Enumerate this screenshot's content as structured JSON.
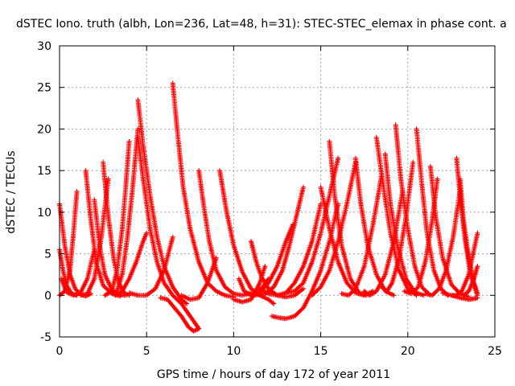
{
  "chart_data": {
    "type": "scatter",
    "title": "dSTEC Iono. truth (albh, Lon=236, Lat=48, h=31): STEC-STEC_elemax in phase cont. a",
    "xlabel": "GPS time / hours of day 172 of year 2011",
    "ylabel": "dSTEC  / TECUs",
    "xlim": [
      0,
      25
    ],
    "ylim": [
      -5,
      30
    ],
    "xticks": [
      0,
      5,
      10,
      15,
      20,
      25
    ],
    "yticks": [
      -5,
      0,
      5,
      10,
      15,
      20,
      25,
      30
    ],
    "grid": true,
    "marker": "+",
    "color": "#ff0000",
    "series": [
      {
        "x": [
          0.0,
          0.3,
          0.6,
          0.9,
          1.2,
          1.5,
          1.8
        ],
        "y": [
          11.0,
          6.0,
          2.5,
          0.8,
          0.1,
          -0.1,
          0.2
        ]
      },
      {
        "x": [
          0.0,
          0.2,
          0.4,
          0.7,
          1.0
        ],
        "y": [
          5.5,
          3.0,
          1.2,
          0.2,
          0.0
        ]
      },
      {
        "x": [
          0.0,
          0.3,
          0.6,
          0.8,
          1.0
        ],
        "y": [
          0.0,
          0.5,
          3.0,
          7.5,
          12.5
        ]
      },
      {
        "x": [
          0.1,
          0.4,
          0.8,
          1.2,
          1.6,
          2.0
        ],
        "y": [
          2.0,
          0.4,
          0.0,
          0.3,
          2.0,
          5.5
        ]
      },
      {
        "x": [
          1.5,
          1.8,
          2.1,
          2.5,
          3.0,
          3.5
        ],
        "y": [
          15.0,
          9.0,
          4.0,
          1.2,
          0.2,
          -0.1
        ]
      },
      {
        "x": [
          1.2,
          1.6,
          2.0,
          2.4,
          2.8
        ],
        "y": [
          0.0,
          0.2,
          2.0,
          7.0,
          14.0
        ]
      },
      {
        "x": [
          2.0,
          2.3,
          2.6,
          3.0,
          3.4,
          3.8
        ],
        "y": [
          11.5,
          6.0,
          2.5,
          0.7,
          0.1,
          0.0
        ]
      },
      {
        "x": [
          2.5,
          2.8,
          3.1,
          3.4,
          3.7,
          4.0
        ],
        "y": [
          16.0,
          9.5,
          4.5,
          1.5,
          0.3,
          0.0
        ]
      },
      {
        "x": [
          2.6,
          3.0,
          3.3,
          3.6,
          3.8,
          4.0
        ],
        "y": [
          0.0,
          0.5,
          3.0,
          8.0,
          13.0,
          18.5
        ]
      },
      {
        "x": [
          3.0,
          3.3,
          3.6,
          3.9,
          4.2,
          4.5
        ],
        "y": [
          0.3,
          0.5,
          2.5,
          7.0,
          13.0,
          20.0
        ]
      },
      {
        "x": [
          4.5,
          4.8,
          5.2,
          5.6,
          6.0,
          6.5,
          7.0,
          7.3
        ],
        "y": [
          23.5,
          18.0,
          12.0,
          7.0,
          3.5,
          1.0,
          -0.5,
          -1.0
        ]
      },
      {
        "x": [
          4.5,
          4.8,
          5.2,
          5.6,
          6.0,
          6.5,
          7.0,
          7.5,
          8.0
        ],
        "y": [
          19.0,
          14.0,
          8.0,
          4.0,
          1.5,
          0.0,
          -1.0,
          -2.5,
          -4.0
        ]
      },
      {
        "x": [
          3.2,
          3.6,
          4.0,
          4.4,
          4.8,
          5.0
        ],
        "y": [
          0.0,
          0.5,
          2.0,
          4.0,
          6.5,
          7.5
        ]
      },
      {
        "x": [
          4.0,
          4.5,
          5.0,
          5.5,
          6.0,
          6.5
        ],
        "y": [
          0.3,
          0.0,
          0.0,
          0.8,
          3.0,
          7.0
        ]
      },
      {
        "x": [
          6.5,
          6.8,
          7.1,
          7.5,
          8.0,
          8.5,
          9.0,
          9.5,
          10.0
        ],
        "y": [
          25.5,
          19.0,
          13.0,
          8.0,
          4.0,
          1.5,
          0.5,
          0.0,
          -0.2
        ]
      },
      {
        "x": [
          5.8,
          6.2,
          6.6,
          7.0,
          7.4,
          7.7,
          8.0
        ],
        "y": [
          -0.3,
          -0.5,
          -1.5,
          -2.5,
          -3.8,
          -4.3,
          -4.0
        ]
      },
      {
        "x": [
          7.0,
          7.5,
          8.0,
          8.5,
          9.0
        ],
        "y": [
          0.0,
          -0.5,
          -0.3,
          1.5,
          4.5
        ]
      },
      {
        "x": [
          8.0,
          8.3,
          8.6,
          9.0,
          9.5,
          10.0,
          10.5,
          11.0
        ],
        "y": [
          15.0,
          10.5,
          6.5,
          3.0,
          1.0,
          0.2,
          0.0,
          0.3
        ]
      },
      {
        "x": [
          9.2,
          9.6,
          10.0,
          10.5,
          11.0,
          11.5,
          12.0,
          12.3
        ],
        "y": [
          15.0,
          10.0,
          6.0,
          2.8,
          0.8,
          0.0,
          -0.5,
          -1.0
        ]
      },
      {
        "x": [
          10.0,
          10.5,
          11.0,
          11.5,
          11.8
        ],
        "y": [
          -0.5,
          -0.8,
          -0.5,
          1.5,
          3.5
        ]
      },
      {
        "x": [
          10.3,
          10.6,
          11.0,
          11.5,
          12.0
        ],
        "y": [
          2.0,
          0.5,
          0.0,
          0.5,
          2.0
        ]
      },
      {
        "x": [
          11.0,
          11.3,
          11.6,
          12.0,
          12.5,
          13.0,
          13.5,
          14.0
        ],
        "y": [
          6.5,
          4.0,
          2.2,
          0.8,
          0.0,
          -0.2,
          0.0,
          0.8
        ]
      },
      {
        "x": [
          11.5,
          12.0,
          12.5,
          13.0,
          13.5,
          14.0,
          14.5,
          15.0
        ],
        "y": [
          0.8,
          0.2,
          0.0,
          0.3,
          1.5,
          3.5,
          6.5,
          11.0
        ]
      },
      {
        "x": [
          11.2,
          11.8,
          12.3,
          12.8,
          13.2,
          13.6,
          14.0
        ],
        "y": [
          0.0,
          0.2,
          1.0,
          3.0,
          6.0,
          9.5,
          13.0
        ]
      },
      {
        "x": [
          11.0,
          11.5,
          12.0,
          12.5,
          13.0,
          13.4
        ],
        "y": [
          0.0,
          0.3,
          1.5,
          3.5,
          6.5,
          8.5
        ]
      },
      {
        "x": [
          12.2,
          12.6,
          13.0,
          13.5,
          14.0,
          14.5,
          15.0,
          15.5,
          16.0
        ],
        "y": [
          -2.5,
          -2.7,
          -2.8,
          -2.5,
          -1.5,
          0.5,
          3.0,
          6.5,
          11.0
        ]
      },
      {
        "x": [
          13.0,
          13.5,
          14.0,
          14.5,
          15.0,
          15.5,
          16.0
        ],
        "y": [
          0.3,
          0.5,
          1.5,
          4.0,
          7.5,
          12.0,
          16.5
        ]
      },
      {
        "x": [
          14.5,
          15.0,
          15.5,
          16.0,
          16.5,
          17.0
        ],
        "y": [
          0.0,
          1.0,
          3.0,
          6.5,
          11.0,
          16.0
        ]
      },
      {
        "x": [
          15.5,
          15.8,
          16.2,
          16.7,
          17.2,
          17.6
        ],
        "y": [
          18.5,
          12.0,
          6.0,
          2.0,
          0.3,
          0.0
        ]
      },
      {
        "x": [
          15.0,
          15.5,
          16.0,
          16.5,
          17.0,
          17.5,
          18.0
        ],
        "y": [
          13.0,
          8.0,
          4.0,
          1.5,
          0.3,
          0.0,
          0.5
        ]
      },
      {
        "x": [
          16.2,
          16.6,
          17.0,
          17.5,
          18.0,
          18.5
        ],
        "y": [
          0.2,
          0.0,
          0.8,
          3.5,
          8.5,
          14.5
        ]
      },
      {
        "x": [
          17.0,
          17.3,
          17.7,
          18.2,
          18.7,
          19.2
        ],
        "y": [
          16.5,
          11.0,
          6.0,
          2.5,
          0.5,
          0.0
        ]
      },
      {
        "x": [
          17.5,
          17.8,
          18.2,
          18.7,
          19.2,
          19.7
        ],
        "y": [
          0.5,
          0.0,
          0.5,
          2.5,
          6.5,
          12.5
        ]
      },
      {
        "x": [
          18.2,
          18.6,
          19.0,
          19.5,
          20.0,
          20.5
        ],
        "y": [
          19.0,
          13.0,
          7.5,
          3.0,
          0.8,
          0.0
        ]
      },
      {
        "x": [
          18.7,
          19.0,
          19.4,
          19.9,
          20.4,
          20.9
        ],
        "y": [
          17.0,
          11.0,
          6.0,
          2.0,
          0.4,
          0.0
        ]
      },
      {
        "x": [
          18.5,
          18.8,
          19.1,
          19.5,
          19.9,
          20.3
        ],
        "y": [
          1.0,
          0.5,
          1.5,
          4.5,
          9.5,
          16.0
        ]
      },
      {
        "x": [
          19.3,
          19.6,
          20.0,
          20.4,
          20.8,
          21.2
        ],
        "y": [
          20.5,
          14.0,
          8.0,
          3.5,
          1.0,
          0.2
        ]
      },
      {
        "x": [
          20.5,
          20.8,
          21.1,
          21.5,
          21.9,
          22.3
        ],
        "y": [
          20.0,
          13.5,
          7.5,
          3.0,
          0.8,
          0.0
        ]
      },
      {
        "x": [
          19.8,
          20.2,
          20.6,
          21.0,
          21.4,
          21.7
        ],
        "y": [
          0.5,
          0.2,
          1.0,
          4.0,
          9.0,
          14.0
        ]
      },
      {
        "x": [
          21.3,
          21.6,
          22.0,
          22.5,
          23.0,
          23.5
        ],
        "y": [
          15.5,
          9.5,
          4.5,
          1.3,
          0.2,
          -0.2
        ]
      },
      {
        "x": [
          21.0,
          21.4,
          21.8,
          22.2,
          22.6,
          23.0
        ],
        "y": [
          0.2,
          0.0,
          0.8,
          3.0,
          7.0,
          12.5
        ]
      },
      {
        "x": [
          22.8,
          23.0,
          23.3,
          23.6,
          24.0
        ],
        "y": [
          16.5,
          12.0,
          6.5,
          2.5,
          0.0
        ]
      },
      {
        "x": [
          23.0,
          23.2,
          23.5,
          23.8,
          24.0
        ],
        "y": [
          14.0,
          9.0,
          4.5,
          1.5,
          0.2
        ]
      },
      {
        "x": [
          22.5,
          22.8,
          23.1,
          23.5,
          24.0
        ],
        "y": [
          0.0,
          0.0,
          0.5,
          2.5,
          7.5
        ]
      },
      {
        "x": [
          22.0,
          22.5,
          23.0,
          23.5,
          23.8,
          24.0
        ],
        "y": [
          0.3,
          0.0,
          -0.3,
          -0.5,
          -0.4,
          -0.3
        ]
      },
      {
        "x": [
          23.2,
          23.5,
          23.8,
          24.0
        ],
        "y": [
          0.0,
          0.5,
          2.0,
          3.5
        ]
      }
    ]
  }
}
